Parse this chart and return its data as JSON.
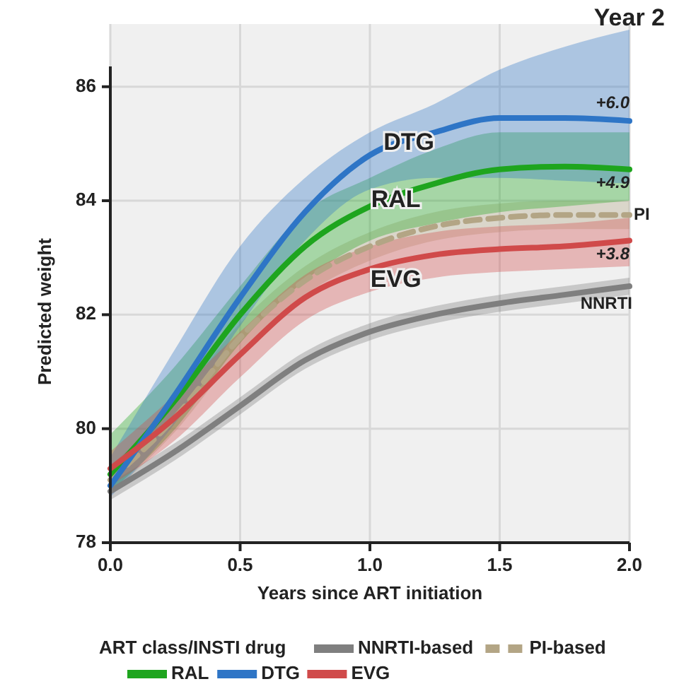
{
  "chart_data": {
    "type": "line",
    "title": "Year 2",
    "xlabel": "Years since ART initiation",
    "ylabel": "Predicted weight",
    "legend_title": "ART class/INSTI drug",
    "legend": "bottom",
    "grid": true,
    "marker": "none",
    "x": [
      0,
      0.25,
      0.5,
      0.75,
      1,
      1.25,
      1.5,
      1.75,
      2
    ],
    "xlim": [
      0,
      2
    ],
    "xticks": [
      {
        "value": 0,
        "label": "0.0"
      },
      {
        "value": 0.5,
        "label": "0.5"
      },
      {
        "value": 1,
        "label": "1.0"
      },
      {
        "value": 1.5,
        "label": "1.5"
      },
      {
        "value": 2,
        "label": "2.0"
      }
    ],
    "ylim": [
      78,
      87.1
    ],
    "yticks": [
      78,
      80,
      82,
      84,
      86
    ],
    "series": [
      {
        "name": "NNRTI-based",
        "color": "#7f7f7f",
        "line_style": "solid",
        "values": [
          78.9,
          79.6,
          80.4,
          81.2,
          81.7,
          82.0,
          82.2,
          82.35,
          82.5
        ],
        "lower": [
          78.75,
          79.45,
          80.25,
          81.05,
          81.55,
          81.85,
          82.05,
          82.2,
          82.35
        ],
        "upper": [
          79.05,
          79.75,
          80.55,
          81.35,
          81.85,
          82.15,
          82.35,
          82.5,
          82.65
        ]
      },
      {
        "name": "PI-based",
        "color": "#b3a585",
        "line_style": "dashed",
        "values": [
          79.1,
          80.2,
          81.6,
          82.6,
          83.2,
          83.55,
          83.7,
          83.75,
          83.75
        ],
        "lower": [
          78.85,
          79.95,
          81.35,
          82.35,
          82.95,
          83.3,
          83.45,
          83.5,
          83.5
        ],
        "upper": [
          79.35,
          80.45,
          81.85,
          82.85,
          83.45,
          83.8,
          83.95,
          84.0,
          84.0
        ]
      },
      {
        "name": "RAL",
        "color": "#1ea51e",
        "line_style": "solid",
        "values": [
          79.2,
          80.5,
          82.0,
          83.2,
          83.9,
          84.3,
          84.55,
          84.6,
          84.55
        ],
        "lower": [
          78.9,
          80.0,
          81.5,
          82.6,
          83.3,
          83.6,
          83.8,
          83.9,
          84.0
        ],
        "upper": [
          79.9,
          81.1,
          82.5,
          83.8,
          84.4,
          84.9,
          85.2,
          85.2,
          85.2
        ]
      },
      {
        "name": "DTG",
        "color": "#2e75c6",
        "line_style": "solid",
        "values": [
          79.0,
          80.6,
          82.3,
          83.8,
          84.8,
          85.2,
          85.45,
          85.45,
          85.4
        ],
        "lower": [
          78.8,
          80.1,
          81.8,
          83.3,
          84.2,
          84.4,
          84.4,
          84.35,
          84.3
        ],
        "upper": [
          79.5,
          81.4,
          83.2,
          84.4,
          85.2,
          85.7,
          86.3,
          86.7,
          87.0
        ]
      },
      {
        "name": "EVG",
        "color": "#d04a4a",
        "line_style": "solid",
        "values": [
          79.3,
          80.2,
          81.3,
          82.3,
          82.8,
          83.05,
          83.15,
          83.2,
          83.3
        ],
        "lower": [
          79.0,
          79.8,
          80.9,
          81.9,
          82.4,
          82.65,
          82.75,
          82.8,
          82.85
        ],
        "upper": [
          79.6,
          80.6,
          81.7,
          82.7,
          83.2,
          83.45,
          83.55,
          83.6,
          83.7
        ]
      }
    ],
    "annotations": [
      {
        "text": "DTG",
        "x": 1.15,
        "y": 85.0
      },
      {
        "text": "RAL",
        "x": 1.1,
        "y": 84.0
      },
      {
        "text": "EVG",
        "x": 1.1,
        "y": 82.6
      },
      {
        "text": "+6.0",
        "x": 2,
        "y": 85.4
      },
      {
        "text": "+4.9",
        "x": 2,
        "y": 84.55
      },
      {
        "text": "PI",
        "x": 2,
        "y": 83.75
      },
      {
        "text": "+3.8",
        "x": 2,
        "y": 83.3
      },
      {
        "text": "NNRTI",
        "x": 2,
        "y": 82.5
      }
    ]
  }
}
